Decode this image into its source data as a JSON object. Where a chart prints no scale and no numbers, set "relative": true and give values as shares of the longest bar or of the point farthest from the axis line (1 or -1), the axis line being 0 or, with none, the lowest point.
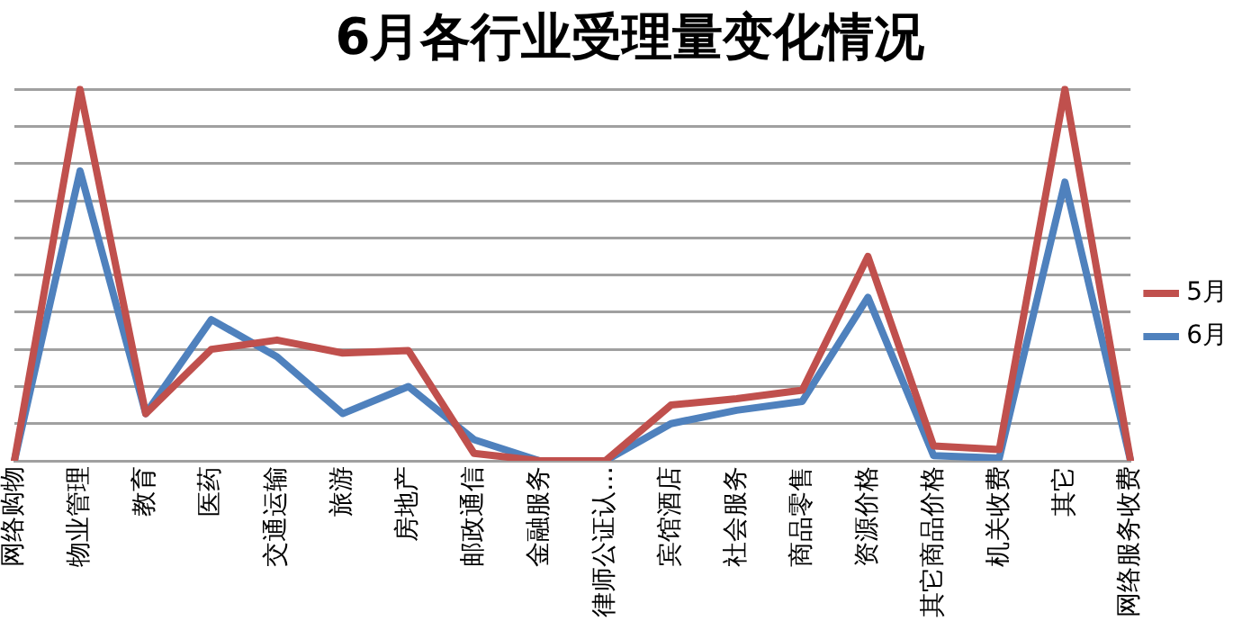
{
  "chart_data": {
    "type": "line",
    "title": "6月各行业受理量变化情况",
    "relative": true,
    "categories": [
      "网络购物",
      "物业管理",
      "教育",
      "医药",
      "交通运输",
      "旅游",
      "房地产",
      "邮政通信",
      "金融服务",
      "律师公证认…",
      "宾馆酒店",
      "社会服务",
      "商品零售",
      "资源价格",
      "其它商品价格",
      "机关收费",
      "其它",
      "网络服务收费"
    ],
    "series": [
      {
        "name": "6月",
        "color": "#4f81bd",
        "values": [
          0,
          0.78,
          0.127,
          0.38,
          0.28,
          0.127,
          0.2,
          0.057,
          0,
          0,
          0.1,
          0.136,
          0.16,
          0.44,
          0.014,
          0.007,
          0.75,
          0
        ]
      },
      {
        "name": "5月",
        "color": "#c0504d",
        "values": [
          0,
          1,
          0.127,
          0.3,
          0.325,
          0.29,
          0.297,
          0.02,
          0,
          0,
          0.15,
          0.167,
          0.19,
          0.55,
          0.04,
          0.03,
          1,
          0
        ]
      }
    ],
    "grid": "y",
    "legend": "right",
    "marker": "none",
    "line_style": "solid"
  }
}
